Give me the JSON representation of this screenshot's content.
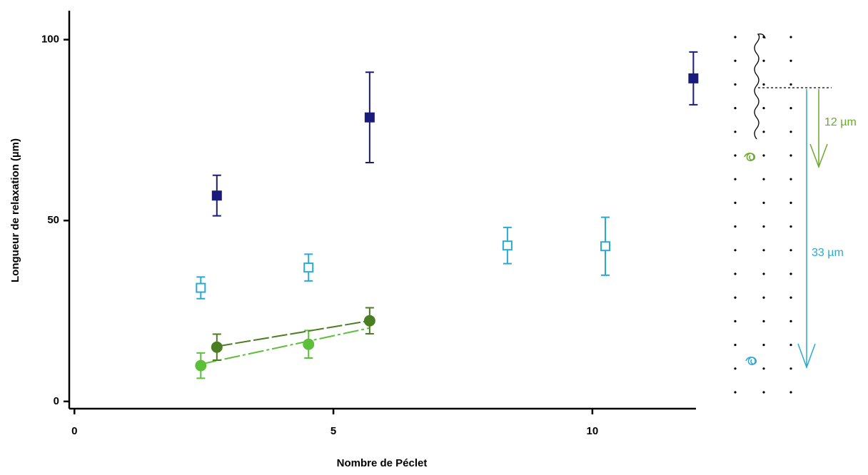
{
  "chart_data": {
    "type": "scatter",
    "x_label": "Nombre de Péclet",
    "y_label": "Longueur de relaxation (µm)",
    "xlim": [
      -0.1,
      12
    ],
    "ylim": [
      -2,
      108
    ],
    "xticks": [
      0,
      5,
      10
    ],
    "yticks": [
      0,
      50,
      100
    ],
    "series": [
      {
        "color": "#1b1b7d",
        "marker": "square",
        "filled": true,
        "x": [
          2.75,
          5.7,
          11.95
        ],
        "values": [
          56.9,
          78.5,
          89.3
        ],
        "errors": [
          5.6,
          12.5,
          7.3
        ]
      },
      {
        "color": "#2aa9d2",
        "marker": "square",
        "filled": false,
        "x": [
          2.44,
          4.52,
          8.36,
          10.25
        ],
        "values": [
          31.4,
          37,
          43.1,
          42.9
        ],
        "errors": [
          3,
          3.7,
          5,
          8
        ]
      },
      {
        "color": "#5cbf3a",
        "marker": "circle",
        "filled": true,
        "x": [
          2.44,
          4.52
        ],
        "values": [
          9.9,
          15.8
        ],
        "errors": [
          3.5,
          3.8
        ],
        "fit_x": [
          2.44,
          5.7
        ],
        "fit_y": [
          10.3,
          20.3
        ],
        "fit_dash": "22 4 4 4"
      },
      {
        "color": "#4b7d22",
        "marker": "circle",
        "filled": true,
        "x": [
          2.75,
          5.7
        ],
        "values": [
          15,
          22.3
        ],
        "errors": [
          3.6,
          3.6
        ],
        "fit_x": [
          2.75,
          5.7
        ],
        "fit_y": [
          15.2,
          22.3
        ],
        "fit_dash": "22 4"
      }
    ],
    "annotations": [
      "12 µm",
      "33 µm"
    ]
  }
}
